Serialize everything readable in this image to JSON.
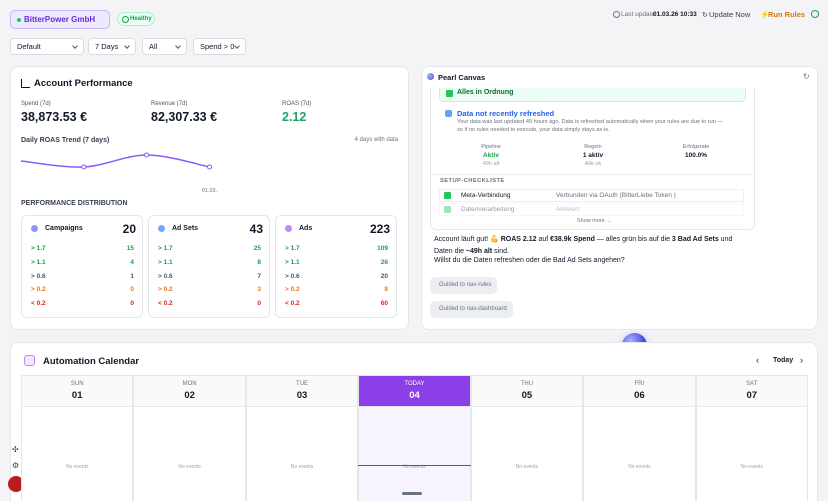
{
  "header": {
    "company": "BitterPower GmbH",
    "status": "Healthy",
    "last_update_label": "Last update",
    "last_update": "01.03.26 10:33",
    "update_button": "Update Now",
    "run_button": "Run Rules"
  },
  "filters": [
    "Default",
    "7 Days",
    "All",
    "Spend > 0"
  ],
  "account_performance": {
    "title": "Account Performance",
    "metrics": [
      {
        "label": "Spend (7d)",
        "value": "38,873.53 €"
      },
      {
        "label": "Revenue (7d)",
        "value": "82,307.33 €"
      },
      {
        "label": "ROAS (7d)",
        "value": "2.12",
        "color": "#22a06b"
      }
    ],
    "trend": {
      "type": "line",
      "title": "Daily ROAS Trend (7 days)",
      "note": "4 days with data",
      "categories": [
        null,
        null,
        null,
        "01.03.",
        null,
        null,
        null
      ],
      "values": [
        2.0,
        1.7,
        2.3,
        1.7,
        null,
        null,
        null
      ],
      "color": "#8b5cf6"
    },
    "distribution": {
      "title": "PERFORMANCE DISTRIBUTION",
      "levels": [
        {
          "label": "> 1.7",
          "color": "#16a34a"
        },
        {
          "label": "> 1.1",
          "color": "#16a34a"
        },
        {
          "label": "> 0.6",
          "color": "#4b5563"
        },
        {
          "label": "> 0.2",
          "color": "#ea7a12"
        },
        {
          "label": "< 0.2",
          "color": "#dc2626"
        }
      ],
      "groups": [
        {
          "name": "Campaigns",
          "total": 20,
          "counts": [
            15,
            4,
            1,
            0,
            0
          ],
          "color": "#6366f1"
        },
        {
          "name": "Ad Sets",
          "total": 43,
          "counts": [
            25,
            8,
            7,
            3,
            0
          ],
          "color": "#3b82f6"
        },
        {
          "name": "Ads",
          "total": 223,
          "counts": [
            109,
            26,
            20,
            8,
            60
          ],
          "color": "#a855f7"
        }
      ]
    }
  },
  "pearl": {
    "title": "Pearl Canvas",
    "banner": "Alles in Ordnung",
    "notice_title": "Data not recently refreshed",
    "notice_lines": [
      "Your data was last updated 49 hours ago. Data is refreshed automatically when your rules are due to run —",
      "so if no rules needed to execute, your data simply stays as-is."
    ],
    "stats": [
      {
        "label": "Pipeline",
        "value": "Aktiv",
        "sub": "49h alt",
        "color": "#16a34a"
      },
      {
        "label": "Regeln",
        "value": "1 aktiv",
        "sub": "Alle ok"
      },
      {
        "label": "Erfolgsrate",
        "value": "100.0%"
      }
    ],
    "checklist_title": "SETUP-CHECKLISTE",
    "checklist": [
      {
        "label": "Meta-Verbindung",
        "status": "Verbunden via OAuth (BitterLiebe Token )"
      },
      {
        "label": "Datenverarbeitung",
        "status": "Aktiviert"
      }
    ],
    "show_more": "Show more →",
    "message": [
      {
        "text": "Account läuft gut! 💪 "
      },
      {
        "text": "ROAS 2.12",
        "bold": true
      },
      {
        "text": " auf "
      },
      {
        "text": "€38.9k Spend",
        "bold": true
      },
      {
        "text": " — alles grün bis auf die "
      },
      {
        "text": "3 Bad Ad Sets",
        "bold": true
      },
      {
        "text": " und Daten die "
      },
      {
        "text": "~49h alt",
        "bold": true
      },
      {
        "text": " sind."
      }
    ],
    "question": "Willst du die Daten refreshen oder die Bad Ad Sets angehen?",
    "actions": [
      "Guided to nav-rules",
      "Guided to nav-dashboard"
    ]
  },
  "calendar": {
    "title": "Automation Calendar",
    "today_button": "Today",
    "empty_label": "No events",
    "days": [
      {
        "name": "SUN",
        "date": "01"
      },
      {
        "name": "MON",
        "date": "02"
      },
      {
        "name": "TUE",
        "date": "03"
      },
      {
        "name": "TODAY",
        "date": "04",
        "today": true
      },
      {
        "name": "THU",
        "date": "05"
      },
      {
        "name": "FRI",
        "date": "06"
      },
      {
        "name": "SAT",
        "date": "07"
      }
    ]
  }
}
